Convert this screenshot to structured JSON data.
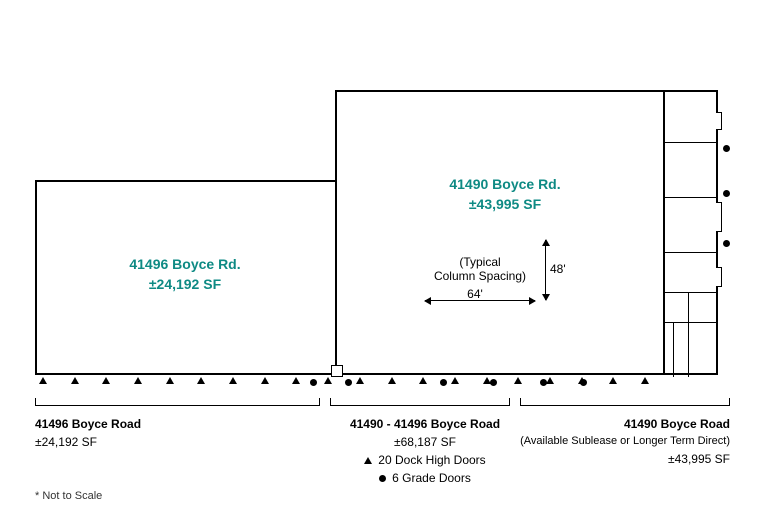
{
  "buildings": {
    "left": {
      "name": "41496 Boyce Rd.",
      "sf": "±24,192 SF"
    },
    "right": {
      "name": "41490 Boyce Rd.",
      "sf": "±43,995 SF"
    }
  },
  "column_spacing": {
    "label": "(Typical\nColumn Spacing)",
    "width": "64'",
    "height": "48'"
  },
  "legend": {
    "left": {
      "title": "41496 Boyce Road",
      "sf": "±24,192 SF"
    },
    "center": {
      "title": "41490 - 41496 Boyce Road",
      "sf": "±68,187 SF",
      "dock": "20 Dock High Doors",
      "grade": "6 Grade Doors"
    },
    "right": {
      "title": "41490 Boyce Road",
      "note": "(Available Sublease or Longer Term Direct)",
      "sf": "±43,995 SF"
    }
  },
  "footnote": "* Not to Scale",
  "colors": {
    "accent": "#0e8a84",
    "text": "#000000",
    "bg": "#ffffff"
  },
  "dock_door_count": 20,
  "grade_door_count": 6
}
